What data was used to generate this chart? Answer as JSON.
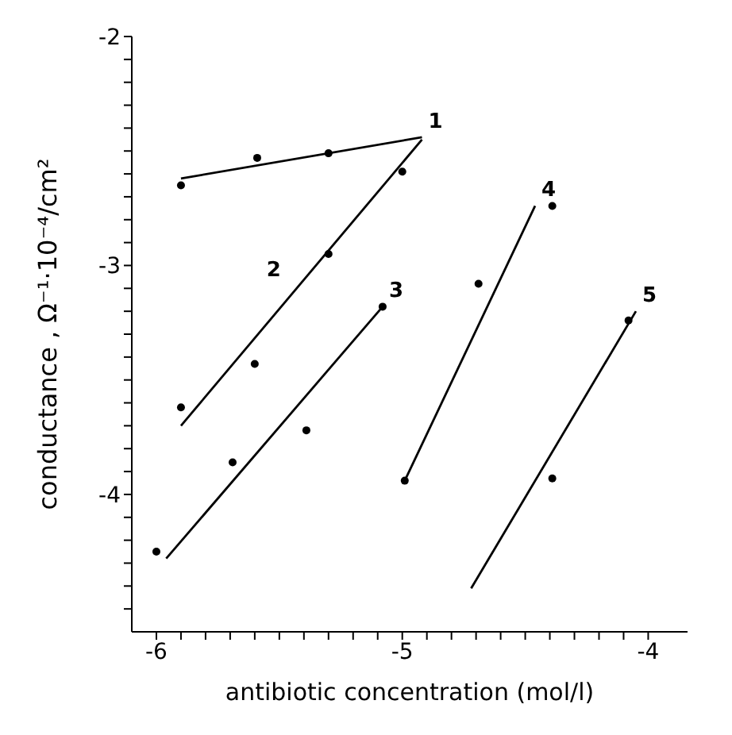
{
  "chart_data": {
    "type": "scatter",
    "xlabel": "antibiotic concentration (mol/l)",
    "ylabel": "conductance , Ω⁻¹·10⁻⁴/cm²",
    "xlim": [
      -6.1,
      -3.84
    ],
    "ylim": [
      -4.6,
      -2.0
    ],
    "xticks": [
      {
        "value": -6,
        "label": "-6"
      },
      {
        "value": -5.9,
        "label": null
      },
      {
        "value": -5.8,
        "label": null
      },
      {
        "value": -5.7,
        "label": null
      },
      {
        "value": -5.6,
        "label": null
      },
      {
        "value": -5.5,
        "label": null
      },
      {
        "value": -5.4,
        "label": null
      },
      {
        "value": -5.3,
        "label": null
      },
      {
        "value": -5.2,
        "label": null
      },
      {
        "value": -5.1,
        "label": null
      },
      {
        "value": -5,
        "label": "-5"
      },
      {
        "value": -4.9,
        "label": null
      },
      {
        "value": -4.8,
        "label": null
      },
      {
        "value": -4.7,
        "label": null
      },
      {
        "value": -4.6,
        "label": null
      },
      {
        "value": -4.5,
        "label": null
      },
      {
        "value": -4.4,
        "label": null
      },
      {
        "value": -4.3,
        "label": null
      },
      {
        "value": -4.2,
        "label": null
      },
      {
        "value": -4.1,
        "label": null
      },
      {
        "value": -4,
        "label": "-4"
      }
    ],
    "yticks": [
      {
        "value": -2,
        "label": "-2"
      },
      {
        "value": -2.1,
        "label": null
      },
      {
        "value": -2.2,
        "label": null
      },
      {
        "value": -2.3,
        "label": null
      },
      {
        "value": -2.4,
        "label": null
      },
      {
        "value": -2.5,
        "label": null
      },
      {
        "value": -2.6,
        "label": null
      },
      {
        "value": -2.7,
        "label": null
      },
      {
        "value": -2.8,
        "label": null
      },
      {
        "value": -2.9,
        "label": null
      },
      {
        "value": -3,
        "label": "-3"
      },
      {
        "value": -3.1,
        "label": null
      },
      {
        "value": -3.2,
        "label": null
      },
      {
        "value": -3.3,
        "label": null
      },
      {
        "value": -3.4,
        "label": null
      },
      {
        "value": -3.5,
        "label": null
      },
      {
        "value": -3.6,
        "label": null
      },
      {
        "value": -3.7,
        "label": null
      },
      {
        "value": -3.8,
        "label": null
      },
      {
        "value": -3.9,
        "label": null
      },
      {
        "value": -4,
        "label": "-4"
      },
      {
        "value": -4.1,
        "label": null
      },
      {
        "value": -4.2,
        "label": null
      },
      {
        "value": -4.3,
        "label": null
      },
      {
        "value": -4.4,
        "label": null
      },
      {
        "value": -4.5,
        "label": null
      }
    ],
    "grid": false,
    "legend": false,
    "series": [
      {
        "type": "scatter",
        "marker": "circle",
        "color": "#000000",
        "x": [
          -5.9,
          -5.59,
          -5.3
        ],
        "values": [
          -2.65,
          -2.53,
          -2.51
        ]
      },
      {
        "type": "line",
        "name": "1",
        "color": "#000000",
        "x": [
          -5.9,
          -4.92
        ],
        "values": [
          -2.62,
          -2.44
        ]
      },
      {
        "type": "scatter",
        "marker": "circle",
        "color": "#000000",
        "x": [
          -5.9,
          -5.6,
          -5.3,
          -5.0
        ],
        "values": [
          -3.62,
          -3.43,
          -2.95,
          -2.59
        ]
      },
      {
        "type": "line",
        "name": "2",
        "color": "#000000",
        "x": [
          -5.9,
          -4.92
        ],
        "values": [
          -3.7,
          -2.45
        ]
      },
      {
        "type": "scatter",
        "marker": "circle",
        "color": "#000000",
        "x": [
          -6.0,
          -5.69,
          -5.39,
          -5.08
        ],
        "values": [
          -4.25,
          -3.86,
          -3.72,
          -3.18
        ]
      },
      {
        "type": "line",
        "name": "3",
        "color": "#000000",
        "x": [
          -5.96,
          -5.08
        ],
        "values": [
          -4.28,
          -3.18
        ]
      },
      {
        "type": "scatter",
        "marker": "circle",
        "color": "#000000",
        "x": [
          -4.99,
          -4.69,
          -4.39
        ],
        "values": [
          -3.94,
          -3.08,
          -2.74
        ]
      },
      {
        "type": "line",
        "name": "4",
        "color": "#000000",
        "x": [
          -4.99,
          -4.46
        ],
        "values": [
          -3.94,
          -2.74
        ]
      },
      {
        "type": "scatter",
        "marker": "circle",
        "color": "#000000",
        "x": [
          -4.39,
          -4.08
        ],
        "values": [
          -3.93,
          -3.24
        ]
      },
      {
        "type": "line",
        "name": "5",
        "color": "#000000",
        "x": [
          -4.72,
          -4.05
        ],
        "values": [
          -4.41,
          -3.2
        ]
      }
    ]
  }
}
